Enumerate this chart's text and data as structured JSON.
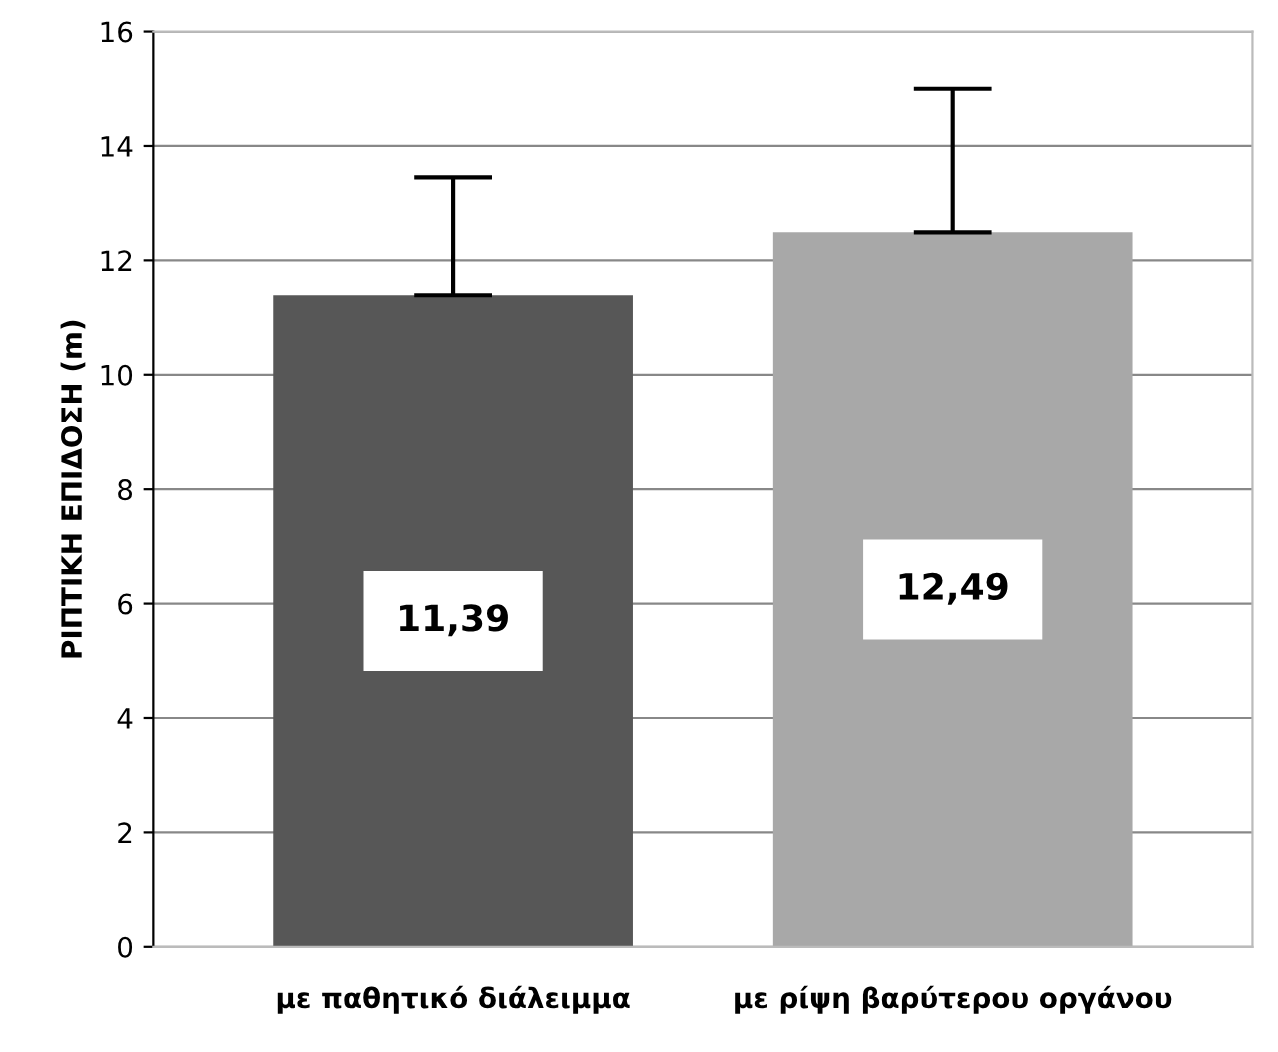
{
  "chart_data": {
    "type": "bar",
    "ylabel": "ΡΙΠΤΙΚΗ ΕΠΙΔΟΣΗ (m)",
    "categories": [
      "με παθητικό διάλειμμα",
      "με ρίψη βαρύτερου οργάνου"
    ],
    "values": [
      11.39,
      12.49
    ],
    "colors": [
      "#575757",
      "#a8a8a8"
    ],
    "errors": [
      [
        11.39,
        13.45
      ],
      [
        12.49,
        15.0
      ]
    ],
    "value_labels": [
      "11,39",
      "12,49"
    ],
    "ylim": [
      0,
      16
    ],
    "yticks": [
      0,
      2,
      4,
      6,
      8,
      10,
      12,
      14,
      16
    ],
    "grid": "y"
  }
}
